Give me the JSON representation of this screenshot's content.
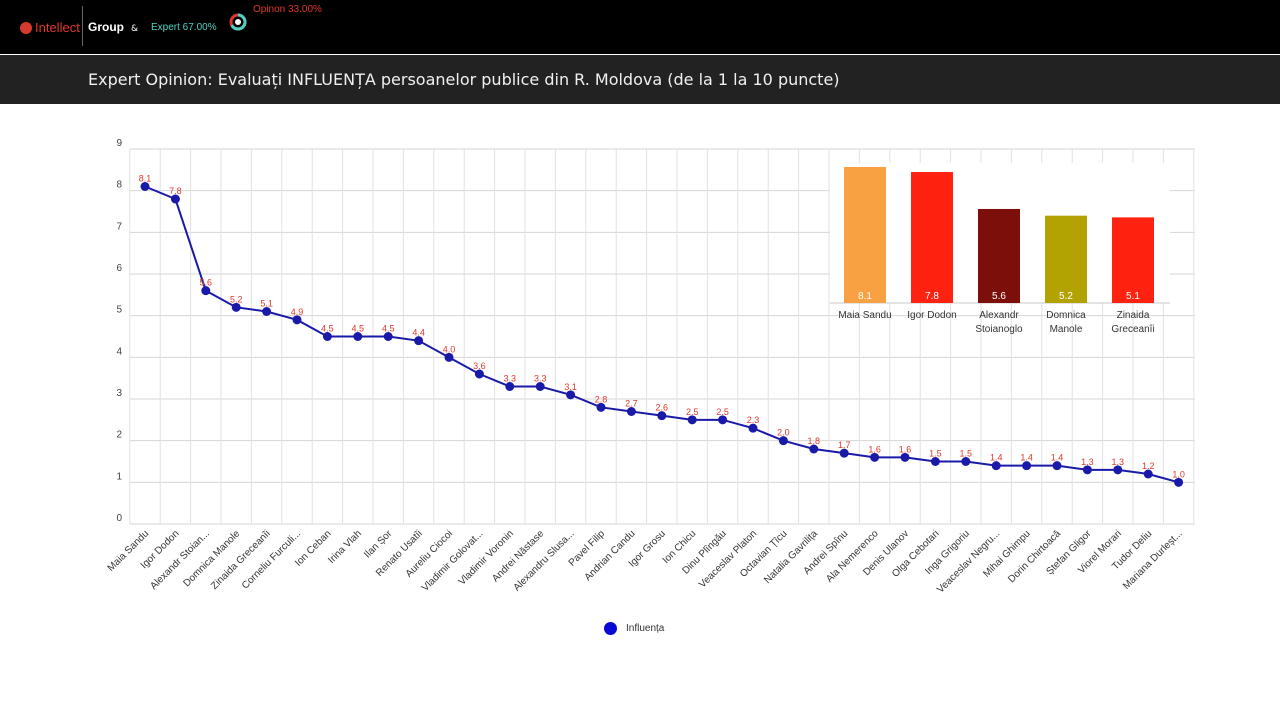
{
  "header": {
    "logo_text": "Intellect",
    "group_text": "Group",
    "amp": "&",
    "expert_label": "Expert 67.00%",
    "opinion_label": "Opinon 33.00%",
    "expert_share": 0.67,
    "colors": {
      "expert": "#4fd1c5",
      "opinion": "#e0372c"
    }
  },
  "page_title": "Expert Opinion: Evaluați INFLUENȚA persoanelor publice din R. Moldova (de la 1 la 10 puncte)",
  "chart_data": [
    {
      "type": "line",
      "title": "",
      "xlabel": "",
      "ylabel": "",
      "ylim": [
        0,
        9
      ],
      "yticks": [
        0,
        1,
        2,
        3,
        4,
        5,
        6,
        7,
        8,
        9
      ],
      "grid": true,
      "legend_position": "bottom",
      "color": "#1a1aa8",
      "label_color": "#e0372c",
      "categories": [
        "Maia Sandu",
        "Igor Dodon",
        "Alexandr Stoian...",
        "Domnica Manole",
        "Zinaida Greceanîi",
        "Corneliu Furculi...",
        "Ion Ceban",
        "Irina Vlah",
        "Ilan Șor",
        "Renato Usatîi",
        "Aureliu Ciocoi",
        "Vladimir Golovat...",
        "Vladimir Voronin",
        "Andrei Năstase",
        "Alexandru Slusa...",
        "Pavel Filip",
        "Andrian Candu",
        "Igor Grosu",
        "Ion Chicu",
        "Dinu Plîngău",
        "Veaceslav Platon",
        "Octavian Țîcu",
        "Natalia Gavrilița",
        "Andrei Spînu",
        "Ala Nemerenco",
        "Denis Ulanov",
        "Olga Cebotari",
        "Inga Grigoriu",
        "Veaceslav Negru...",
        "Mihai Ghimpu",
        "Dorin Chirtoacă",
        "Ștefan Gligor",
        "Viorel Morari",
        "Tudor Deliu",
        "Mariana Durleșt..."
      ],
      "series": [
        {
          "name": "Influența",
          "values": [
            8.1,
            7.8,
            5.6,
            5.2,
            5.1,
            4.9,
            4.5,
            4.5,
            4.5,
            4.4,
            4.0,
            3.6,
            3.3,
            3.3,
            3.1,
            2.8,
            2.7,
            2.6,
            2.5,
            2.5,
            2.3,
            2.0,
            1.8,
            1.7,
            1.6,
            1.6,
            1.5,
            1.5,
            1.4,
            1.4,
            1.4,
            1.3,
            1.3,
            1.2,
            1.0
          ],
          "labels": [
            "8.1",
            "7.8",
            "5.6",
            "5.2",
            "5.1",
            "4.9",
            "4.5",
            "4.5",
            "4.5",
            "4.4",
            "4.0",
            "3.6",
            "3.3",
            "3.3",
            "3.1",
            "2.8",
            "2.7",
            "2.6",
            "2.5",
            "2.5",
            "2.3",
            "2.0",
            "1.8",
            "1.7",
            "1.6",
            "1.6",
            "1.5",
            "1.5",
            "1.4",
            "1.4",
            "1.4",
            "1.3",
            "1.3",
            "1.2",
            "1.0"
          ]
        }
      ]
    },
    {
      "type": "bar",
      "title": "",
      "categories": [
        "Maia Sandu",
        "Igor Dodon",
        "Alexandr Stoianoglo",
        "Domnica Manole",
        "Zinaida Greceanîi"
      ],
      "category_lines": [
        [
          "Maia Sandu"
        ],
        [
          "Igor Dodon"
        ],
        [
          "Alexandr",
          "Stoianoglo"
        ],
        [
          "Domnica",
          "Manole"
        ],
        [
          "Zinaida",
          "Greceanîi"
        ]
      ],
      "values": [
        8.1,
        7.8,
        5.6,
        5.2,
        5.1
      ],
      "labels": [
        "8.1",
        "7.8",
        "5.6",
        "5.2",
        "5.1"
      ],
      "colors": [
        "#f7a142",
        "#ff2211",
        "#7d0f0a",
        "#b2a202",
        "#ff2211"
      ]
    }
  ]
}
